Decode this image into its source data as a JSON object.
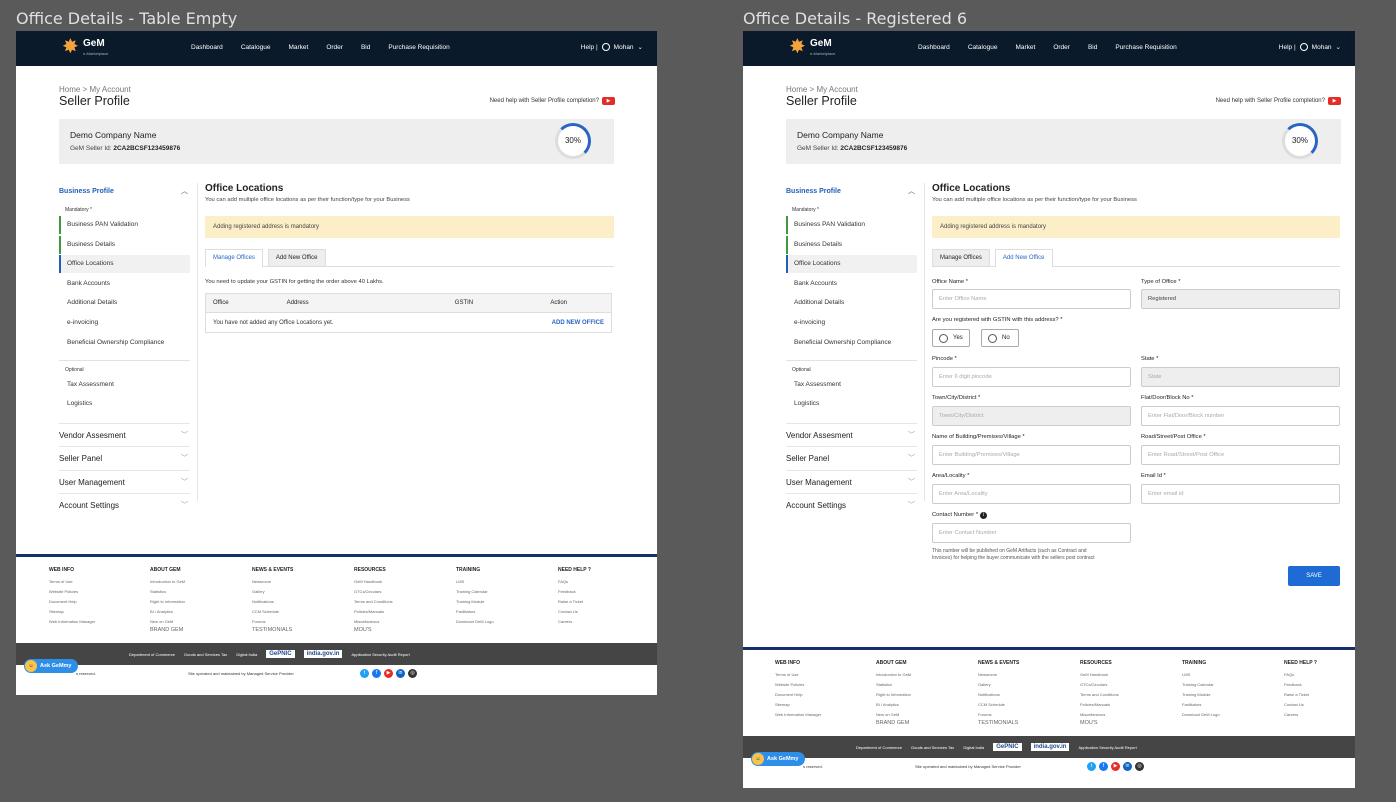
{
  "frames": {
    "a_title": "Office Details - Table Empty",
    "b_title": "Office Details - Registered 6"
  },
  "header": {
    "logo_text": "GeM",
    "logo_sub": "e-Marketplace",
    "nav": [
      "Dashboard",
      "Catalogue",
      "Market",
      "Order",
      "Bid",
      "Purchase Requisition"
    ],
    "help": "Help |",
    "user": "Mohan"
  },
  "page": {
    "breadcrumb": "Home > My Account",
    "title": "Seller Profile",
    "help_text": "Need help with Seller Profile completion?",
    "company_name": "Demo Company Name",
    "seller_id_label": "GeM Seller Id:",
    "seller_id": "2CA2BCSF123459876",
    "progress": "30%"
  },
  "sidebar": {
    "business_profile": "Business Profile",
    "mandatory": "Mandatory *",
    "items": [
      "Business PAN Validation",
      "Business Details",
      "Office Locations",
      "Bank Accounts",
      "Additional Details",
      "e-invoicing",
      "Beneficial Ownership Compliance"
    ],
    "optional": "Optional",
    "optional_items": [
      "Tax Assessment",
      "Logistics"
    ],
    "sections": [
      "Vendor Assesment",
      "Seller Panel",
      "User Management",
      "Account Settings"
    ]
  },
  "main": {
    "title": "Office Locations",
    "subtitle": "You can add multiple office locations as per their function/type for your Business",
    "warning": "Adding registered address is mandatory",
    "tab_manage": "Manage Offices",
    "tab_add": "Add New Office",
    "gst_note": "You need to update your GSTIN for getting the order above 40 Lakhs.",
    "table_headers": [
      "Office",
      "Address",
      "GSTIN",
      "Action"
    ],
    "empty_text": "You have not added any Office Locations yet.",
    "add_link": "ADD NEW OFFICE"
  },
  "form": {
    "office_name_label": "Office Name *",
    "office_name_ph": "Enter Office Name",
    "type_label": "Type of Office *",
    "type_value": "Registered",
    "gstin_q": "Are you registered with GSTIN with this address? *",
    "yes": "Yes",
    "no": "No",
    "pincode_label": "Pincode *",
    "pincode_ph": "Enter 6 digit pincode",
    "state_label": "State *",
    "state_ph": "State",
    "town_label": "Town/City/District *",
    "town_ph": "Town/City/District",
    "flat_label": "Flat/Door/Block No *",
    "flat_ph": "Enter Flat/Door/Block number",
    "building_label": "Name of Building/Premises/Village *",
    "building_ph": "Enter Building/Premises/Village",
    "road_label": "Road/Street/Post Office *",
    "road_ph": "Enter Road/Street/Post Office",
    "area_label": "Area/Locality *",
    "area_ph": "Enter Area/Locality",
    "email_label": "Email Id *",
    "email_ph": "Enter email id",
    "contact_label": "Contact Number *",
    "contact_ph": "Enter Contact Number",
    "contact_note1": "This number will be published on GeM Artifacts (such as Contract and",
    "contact_note2": "Invoices) for helping the buyer communicate with the sellers post contract",
    "save": "SAVE"
  },
  "footer": {
    "cols": [
      {
        "h": "WEB INFO",
        "items": [
          "Terms of Use",
          "Website Policies",
          "Document Help",
          "Sitemap",
          "Web Information Manager"
        ],
        "big": []
      },
      {
        "h": "ABOUT GEM",
        "items": [
          "Introduction to GeM",
          "Statistics",
          "Right to Information",
          "BI / Analytics",
          "New on GeM"
        ],
        "big": [
          "BRAND GEM"
        ]
      },
      {
        "h": "NEWS & EVENTS",
        "items": [
          "Newsroom",
          "Gallery",
          "Notifications",
          "CCM Schedule",
          "Forums"
        ],
        "big": [
          "TESTIMONIALS"
        ]
      },
      {
        "h": "RESOURCES",
        "items": [
          "GeM Handbook",
          "GTCs/Circulars",
          "Terms and Conditions",
          "Policies/Manuals",
          "Miscellaneous"
        ],
        "big": [
          "MOU'S"
        ]
      },
      {
        "h": "TRAINING",
        "items": [
          "LMS",
          "Training Calendar",
          "Training Module",
          "Facilitators",
          "Download GeM Logo"
        ],
        "big": []
      },
      {
        "h": "NEED HELP ?",
        "items": [
          "FAQs",
          "Feedback",
          "Raise a Ticket",
          "Contact Us",
          "Careers"
        ],
        "big": []
      }
    ],
    "partners": [
      "Department of Commerce",
      "Goods and Services Tax",
      "Digital India",
      "GePNIC",
      "india.gov.in",
      "Application Security Audit Report"
    ],
    "rights": "s reserved.",
    "maintained": "Site operated and maintained by Managed Service Provider",
    "ask": "Ask GeMmy"
  }
}
